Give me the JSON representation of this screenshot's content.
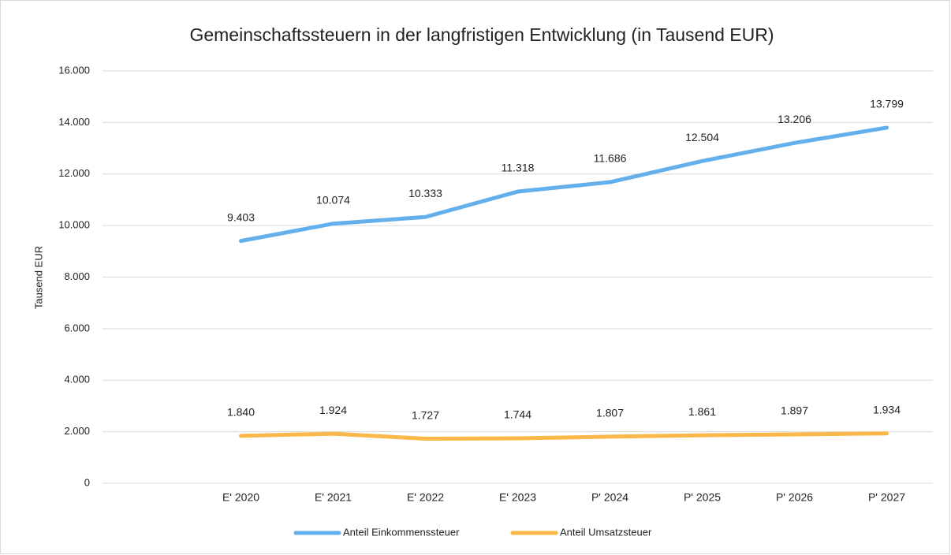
{
  "chart_data": {
    "type": "line",
    "title": "Gemeinschaftssteuern in der langfristigen Entwicklung  (in Tausend EUR)",
    "y_label": "Tausend EUR",
    "categories": [
      null,
      "E' 2020",
      "E' 2021",
      "E' 2022",
      "E' 2023",
      "P' 2024",
      "P' 2025",
      "P' 2026",
      "P' 2027"
    ],
    "series": [
      {
        "name": "Anteil Einkommenssteuer",
        "color": "#64b0ec",
        "values": [
          null,
          9403,
          10074,
          10333,
          11318,
          11686,
          12504,
          13206,
          13799
        ],
        "value_labels": [
          null,
          "9.403",
          "10.074",
          "10.333",
          "11.318",
          "11.686",
          "12.504",
          "13.206",
          "13.799"
        ]
      },
      {
        "name": "Anteil Umsatzsteuer",
        "color": "#fbb84a",
        "values": [
          null,
          1840,
          1924,
          1727,
          1744,
          1807,
          1861,
          1897,
          1934
        ],
        "value_labels": [
          null,
          "1.840",
          "1.924",
          "1.727",
          "1.744",
          "1.807",
          "1.861",
          "1.897",
          "1.934"
        ]
      }
    ],
    "ylim": [
      0,
      16000
    ],
    "yticks": [
      0,
      {
        "value": 2000,
        "label": "2.000"
      },
      {
        "value": 4000,
        "label": "4.000"
      },
      {
        "value": 6000,
        "label": "6.000"
      },
      {
        "value": 8000,
        "label": "8.000"
      },
      {
        "value": 10000,
        "label": "10.000"
      },
      {
        "value": 12000,
        "label": "12.000"
      },
      {
        "value": 14000,
        "label": "14.000"
      },
      {
        "value": 16000,
        "label": "16.000"
      }
    ],
    "grid": true,
    "legend": "bottom"
  }
}
